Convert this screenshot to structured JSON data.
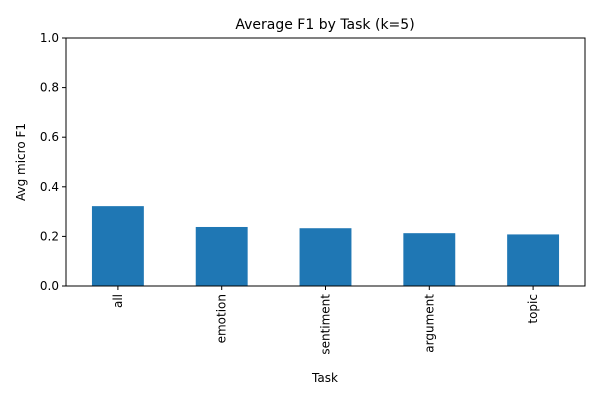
{
  "chart_data": {
    "type": "bar",
    "title": "Average F1 by Task (k=5)",
    "xlabel": "Task",
    "ylabel": "Avg micro F1",
    "categories": [
      "all",
      "emotion",
      "sentiment",
      "argument",
      "topic"
    ],
    "values": [
      0.322,
      0.238,
      0.233,
      0.213,
      0.208
    ],
    "ylim": [
      0,
      1
    ],
    "yticks": [
      0.0,
      0.2,
      0.4,
      0.6,
      0.8,
      1.0
    ],
    "ytick_labels": [
      "0.0",
      "0.2",
      "0.4",
      "0.6",
      "0.8",
      "1.0"
    ],
    "bar_color": "#1f77b4",
    "grid": false,
    "legend": "none"
  }
}
